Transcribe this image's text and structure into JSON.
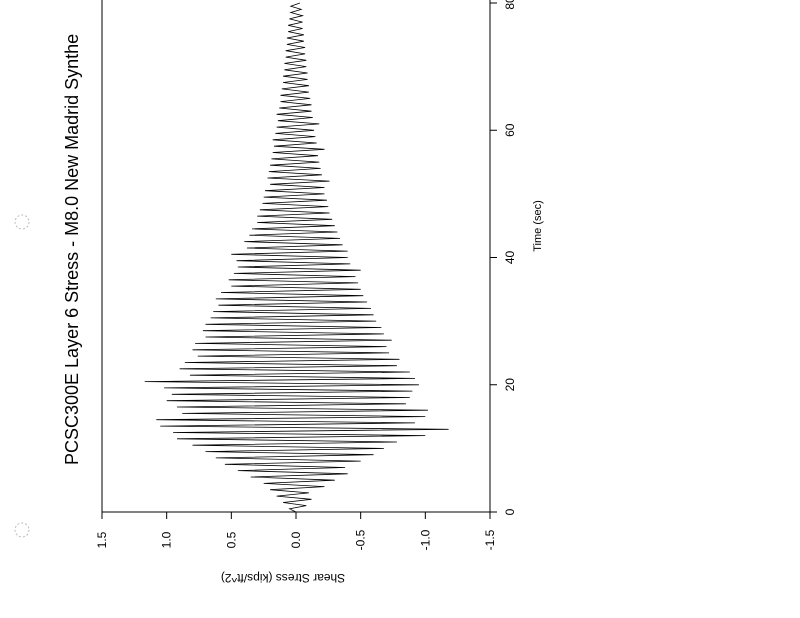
{
  "chart_data": {
    "type": "line",
    "orientation": "rotated-90-clockwise",
    "title": "PCSC300E Layer 6 Stress - M8.0 New Madrid Synthe",
    "xlabel": "Time (sec)",
    "ylabel": "Shear Stress (kips/ft^2)",
    "xlim": [
      0,
      80
    ],
    "ylim": [
      1.5,
      -1.5
    ],
    "x_ticks": [
      "0",
      "20",
      "40",
      "60",
      "80"
    ],
    "y_ticks": [
      "1.5",
      "1.0",
      "0.5",
      "0.0",
      "-0.5",
      "-1.0",
      "-1.5"
    ],
    "grid": false,
    "line_color": "#000000",
    "sample_interval_sec": 0.5,
    "values": [
      0,
      0.05,
      -0.08,
      0.1,
      -0.12,
      0.15,
      -0.1,
      0.2,
      -0.22,
      0.25,
      -0.3,
      0.35,
      -0.4,
      0.45,
      -0.38,
      0.55,
      -0.5,
      0.62,
      -0.6,
      0.7,
      -0.68,
      0.8,
      -0.78,
      0.92,
      -1.0,
      0.95,
      -1.18,
      1.05,
      -0.92,
      1.08,
      -1.0,
      0.88,
      -1.02,
      0.92,
      -0.85,
      1.0,
      -0.88,
      0.96,
      -0.9,
      1.02,
      -0.95,
      1.17,
      -0.92,
      0.82,
      -0.88,
      0.9,
      -0.78,
      0.86,
      -0.8,
      0.76,
      -0.72,
      0.8,
      -0.7,
      0.78,
      -0.74,
      0.7,
      -0.68,
      0.72,
      -0.66,
      0.7,
      -0.62,
      0.66,
      -0.6,
      0.64,
      -0.58,
      0.6,
      -0.55,
      0.62,
      -0.52,
      0.58,
      -0.5,
      0.5,
      -0.48,
      0.52,
      -0.46,
      0.48,
      -0.5,
      0.45,
      -0.42,
      0.46,
      -0.4,
      0.5,
      -0.4,
      0.38,
      -0.36,
      0.4,
      -0.34,
      0.36,
      -0.32,
      0.34,
      -0.3,
      0.3,
      -0.28,
      0.3,
      -0.26,
      0.28,
      -0.25,
      0.26,
      -0.24,
      0.25,
      -0.22,
      0.24,
      -0.22,
      0.2,
      -0.26,
      0.22,
      -0.2,
      0.21,
      -0.19,
      0.2,
      -0.18,
      0.19,
      -0.17,
      0.18,
      -0.22,
      0.17,
      -0.16,
      0.18,
      -0.15,
      0.16,
      -0.14,
      0.15,
      -0.18,
      0.14,
      -0.13,
      0.15,
      -0.12,
      0.13,
      -0.12,
      0.12,
      -0.11,
      0.12,
      -0.1,
      0.11,
      -0.1,
      0.1,
      -0.09,
      0.1,
      -0.09,
      0.09,
      -0.08,
      0.09,
      -0.08,
      0.08,
      -0.07,
      0.08,
      -0.07,
      0.07,
      -0.06,
      0.07,
      -0.06,
      0.06,
      -0.05,
      0.06,
      -0.05,
      0.05,
      -0.05,
      0.04,
      -0.04,
      0.04,
      -0.03
    ]
  }
}
